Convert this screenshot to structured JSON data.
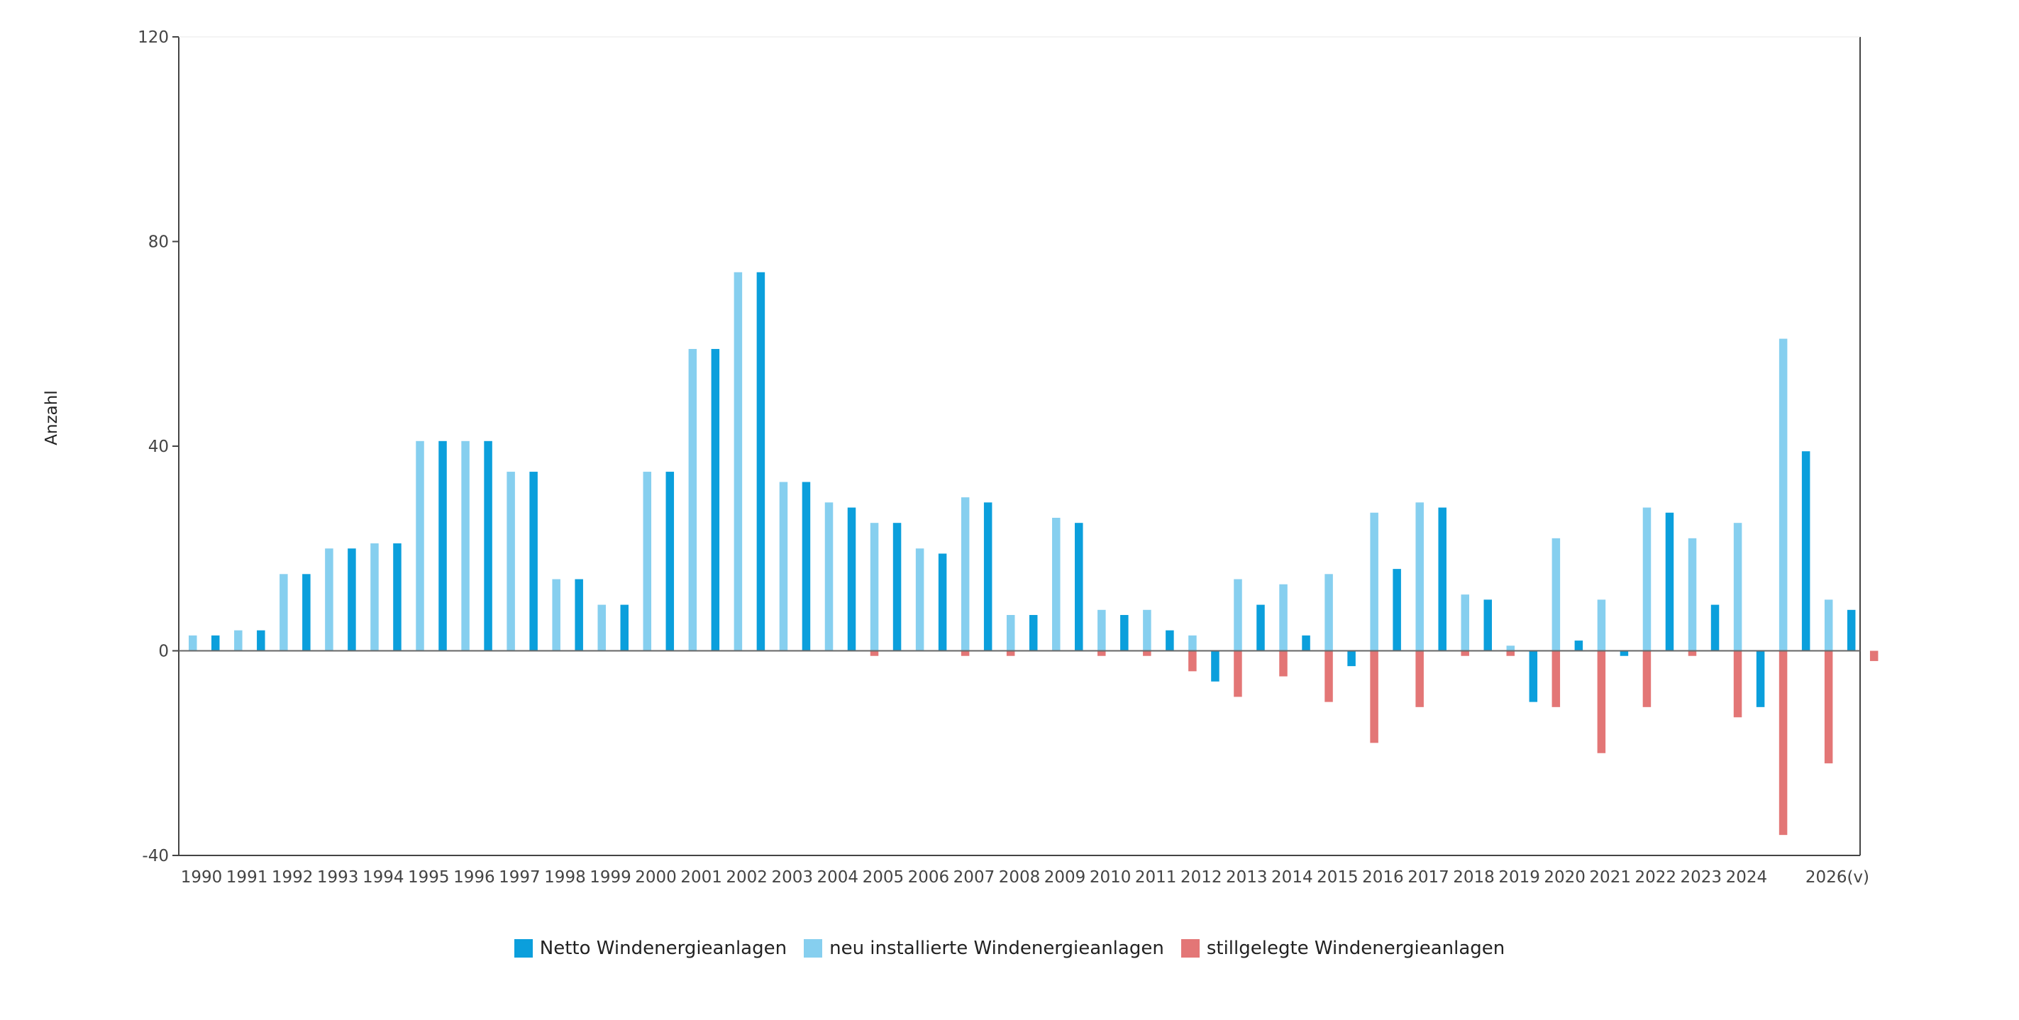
{
  "chart_data": {
    "type": "bar",
    "ylabel": "Anzahl",
    "xlabel": "",
    "title": "",
    "ylim": [
      -40,
      120
    ],
    "yticks": [
      -40,
      0,
      40,
      80,
      120
    ],
    "grid": false,
    "legend_position": "bottom-center",
    "x_labels": [
      "1990",
      "1991",
      "1992",
      "1993",
      "1994",
      "1995",
      "1996",
      "1997",
      "1998",
      "1999",
      "2000",
      "2001",
      "2002",
      "2003",
      "2004",
      "2005",
      "2006",
      "2007",
      "2008",
      "2009",
      "2010",
      "2011",
      "2012",
      "2013",
      "2014",
      "2015",
      "2016",
      "2017",
      "2018",
      "2019",
      "2020",
      "2021",
      "2022",
      "2023",
      "2024",
      "",
      "2026(v)"
    ],
    "series": [
      {
        "name": "Netto Windenergieanlagen",
        "color": "#0b9fdc",
        "values": [
          3,
          4,
          15,
          20,
          21,
          41,
          41,
          35,
          14,
          9,
          35,
          59,
          74,
          33,
          28,
          25,
          19,
          29,
          7,
          25,
          7,
          4,
          -6,
          9,
          3,
          -3,
          16,
          28,
          10,
          -10,
          2,
          -1,
          27,
          9,
          -11,
          39,
          8
        ]
      },
      {
        "name": "neu installierte Windenergieanlagen",
        "color": "#86cfef",
        "values": [
          3,
          4,
          15,
          20,
          21,
          41,
          41,
          35,
          14,
          9,
          35,
          59,
          74,
          33,
          29,
          25,
          20,
          30,
          7,
          26,
          8,
          8,
          3,
          14,
          13,
          15,
          27,
          29,
          11,
          1,
          22,
          10,
          28,
          22,
          25,
          61,
          10
        ]
      },
      {
        "name": "stillgelegte Windenergieanlagen",
        "color": "#e37676",
        "values": [
          0,
          0,
          0,
          0,
          0,
          0,
          0,
          0,
          0,
          0,
          0,
          0,
          0,
          0,
          -1,
          0,
          -1,
          -1,
          0,
          -1,
          -1,
          -4,
          -9,
          -5,
          -10,
          -18,
          -11,
          -1,
          -1,
          -11,
          -20,
          -11,
          -1,
          -13,
          -36,
          -22,
          -2
        ]
      }
    ]
  }
}
